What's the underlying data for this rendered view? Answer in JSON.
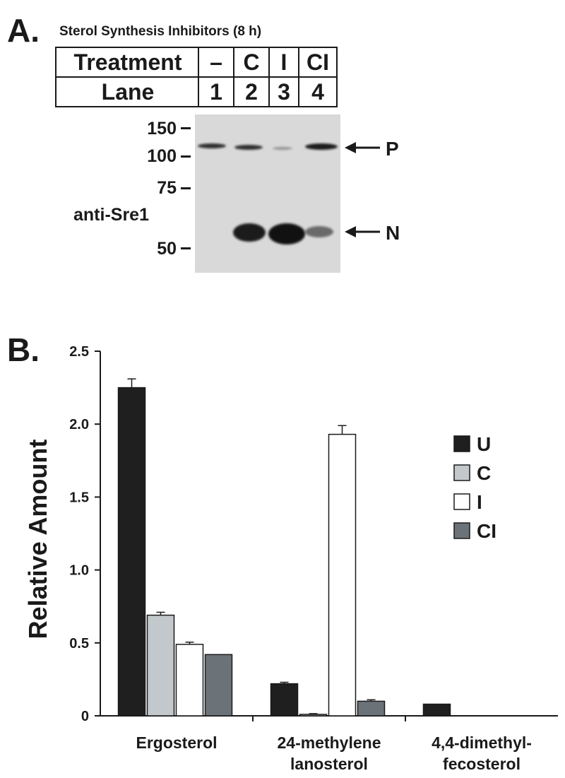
{
  "panel_a": {
    "label": "A.",
    "title": "Sterol Synthesis Inhibitors (8 h)",
    "table": {
      "treatment_label": "Treatment",
      "treatments": [
        "–",
        "C",
        "I",
        "CI"
      ],
      "lane_label": "Lane",
      "lanes": [
        "1",
        "2",
        "3",
        "4"
      ]
    },
    "antibody": "anti-Sre1",
    "mw_markers": [
      "150",
      "100",
      "75",
      "50"
    ],
    "band_labels": {
      "precursor": "P",
      "nuclear": "N"
    }
  },
  "chart_data": {
    "type": "bar",
    "panel_label": "B.",
    "title": "",
    "xlabel": "",
    "ylabel": "Relative Amount",
    "ylim": [
      0,
      2.5
    ],
    "yticks": [
      "0",
      "0.5",
      "1.0",
      "1.5",
      "2.0",
      "2.5"
    ],
    "categories": [
      "Ergosterol",
      "24-methylene lanosterol",
      "4,4-dimethyl-fecosterol"
    ],
    "category_lines": [
      [
        "Ergosterol"
      ],
      [
        "24-methylene",
        "lanosterol"
      ],
      [
        "4,4-dimethyl-",
        "fecosterol"
      ]
    ],
    "series": [
      {
        "name": "U",
        "color": "#1f1f1f",
        "values": [
          2.25,
          0.22,
          0.08
        ],
        "errors": [
          0.06,
          0.01,
          0
        ]
      },
      {
        "name": "C",
        "color": "#c3c8cc",
        "values": [
          0.69,
          0.01,
          0
        ],
        "errors": [
          0.02,
          0.005,
          0
        ]
      },
      {
        "name": "I",
        "color": "#ffffff",
        "values": [
          0.49,
          1.93,
          0
        ],
        "errors": [
          0.015,
          0.06,
          0
        ]
      },
      {
        "name": "CI",
        "color": "#6b7278",
        "values": [
          0.42,
          0.1,
          0
        ],
        "errors": [
          0,
          0.01,
          0
        ]
      }
    ],
    "legend_position": "right",
    "grid": false
  }
}
